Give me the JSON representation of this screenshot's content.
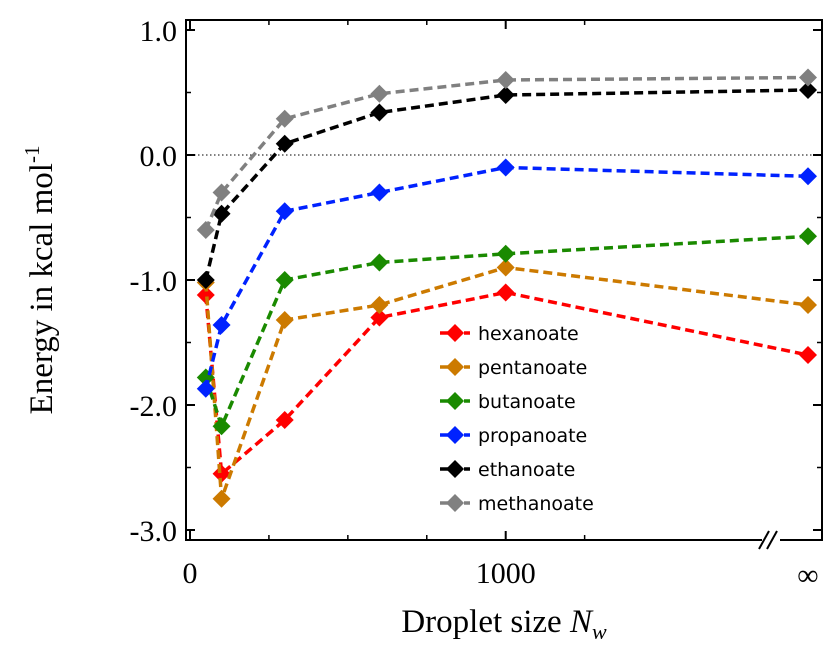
{
  "chart_data": {
    "type": "line",
    "xlabel": "Droplet size",
    "xlabel_var": "N",
    "xlabel_sub": "w",
    "ylabel": "Energy in kcal mol",
    "ylabel_sup": "-1",
    "xlim": [
      0,
      1400
    ],
    "ylim": [
      -3.0,
      1.0
    ],
    "x_ticks": [
      {
        "value": 0,
        "label": "0"
      },
      {
        "value": 1000,
        "label": "1000"
      },
      {
        "value": "inf",
        "label": "∞"
      }
    ],
    "y_ticks": [
      {
        "value": 1.0,
        "label": "1.0"
      },
      {
        "value": 0.0,
        "label": "0.0"
      },
      {
        "value": -1.0,
        "label": "-1.0"
      },
      {
        "value": -2.0,
        "label": "-2.0"
      },
      {
        "value": -3.0,
        "label": "-3.0"
      }
    ],
    "axis_break": "x",
    "zero_line": true,
    "grid": false,
    "legend_position": "lower-right",
    "series": [
      {
        "name": "hexanoate",
        "color": "#ff0000",
        "points": [
          [
            50,
            -1.12
          ],
          [
            100,
            -2.55
          ],
          [
            300,
            -2.12
          ],
          [
            600,
            -1.3
          ],
          [
            1000,
            -1.1
          ],
          [
            "inf",
            -1.6
          ]
        ]
      },
      {
        "name": "pentanoate",
        "color": "#cc7a00",
        "points": [
          [
            50,
            -1.02
          ],
          [
            100,
            -2.75
          ],
          [
            300,
            -1.32
          ],
          [
            600,
            -1.2
          ],
          [
            1000,
            -0.9
          ],
          [
            "inf",
            -1.2
          ]
        ]
      },
      {
        "name": "butanoate",
        "color": "#1a8a00",
        "points": [
          [
            50,
            -1.78
          ],
          [
            100,
            -2.17
          ],
          [
            300,
            -1.0
          ],
          [
            600,
            -0.86
          ],
          [
            1000,
            -0.79
          ],
          [
            "inf",
            -0.65
          ]
        ]
      },
      {
        "name": "propanoate",
        "color": "#0022ff",
        "points": [
          [
            50,
            -1.87
          ],
          [
            100,
            -1.36
          ],
          [
            300,
            -0.45
          ],
          [
            600,
            -0.3
          ],
          [
            1000,
            -0.1
          ],
          [
            "inf",
            -0.17
          ]
        ]
      },
      {
        "name": "ethanoate",
        "color": "#000000",
        "points": [
          [
            50,
            -1.0
          ],
          [
            100,
            -0.47
          ],
          [
            300,
            0.09
          ],
          [
            600,
            0.34
          ],
          [
            1000,
            0.48
          ],
          [
            "inf",
            0.52
          ]
        ]
      },
      {
        "name": "methanoate",
        "color": "#808080",
        "points": [
          [
            50,
            -0.6
          ],
          [
            100,
            -0.3
          ],
          [
            300,
            0.29
          ],
          [
            600,
            0.49
          ],
          [
            1000,
            0.6
          ],
          [
            "inf",
            0.62
          ]
        ]
      }
    ]
  }
}
